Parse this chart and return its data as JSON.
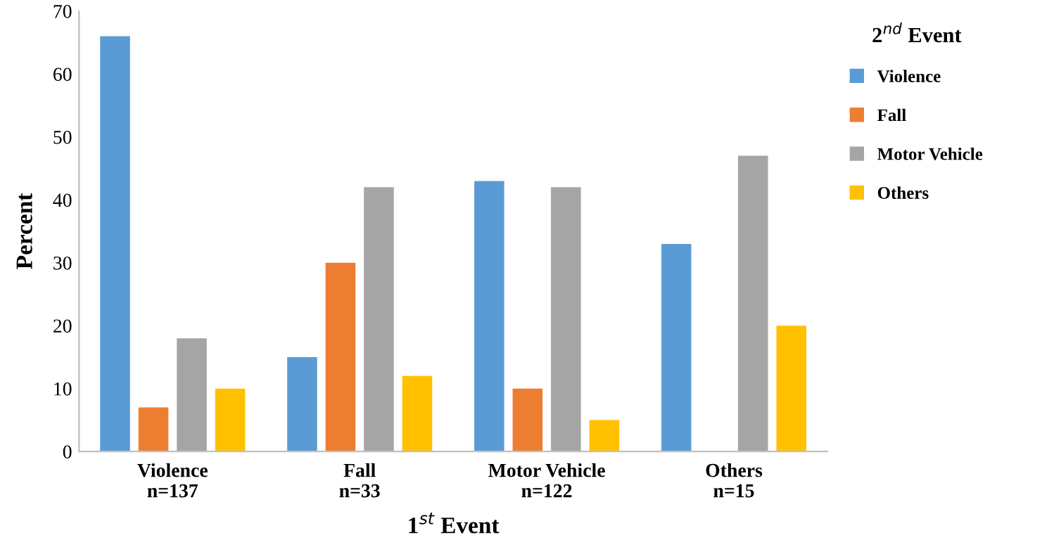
{
  "chart_data": {
    "type": "bar",
    "categories": [
      "Violence\nn=137",
      "Fall\nn=33",
      "Motor Vehicle\nn=122",
      "Others\nn=15"
    ],
    "series": [
      {
        "name": "Violence",
        "color": "#5b9bd5",
        "values": [
          66,
          15,
          43,
          33
        ]
      },
      {
        "name": "Fall",
        "color": "#ed7d31",
        "values": [
          7,
          30,
          10,
          0
        ]
      },
      {
        "name": "Motor Vehicle",
        "color": "#a5a5a5",
        "values": [
          18,
          42,
          42,
          47
        ]
      },
      {
        "name": "Others",
        "color": "#ffc000",
        "values": [
          10,
          12,
          5,
          20
        ]
      }
    ],
    "xlabel": "1$^{st}$ Event",
    "ylabel": "Percent",
    "legend_title": "2$^{nd}$ Event",
    "ylim": [
      0,
      70
    ],
    "yticks": [
      0,
      10,
      20,
      30,
      40,
      50,
      60,
      70
    ],
    "grid": false,
    "legend": "right"
  }
}
